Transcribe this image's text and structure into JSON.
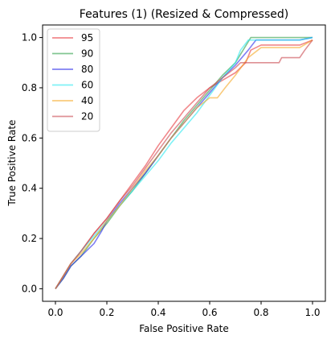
{
  "chart_data": {
    "type": "line",
    "title": "Features (1) (Resized & Compressed)",
    "xlabel": "False Positive Rate",
    "ylabel": "True Positive Rate",
    "xlim": [
      -0.05,
      1.05
    ],
    "ylim": [
      -0.05,
      1.05
    ],
    "xticks": [
      "0.0",
      "0.2",
      "0.4",
      "0.6",
      "0.8",
      "1.0"
    ],
    "yticks": [
      "0.0",
      "0.2",
      "0.4",
      "0.6",
      "0.8",
      "1.0"
    ],
    "grid": false,
    "legend_position": "top-left",
    "series": [
      {
        "name": "95",
        "color": "#e8383d",
        "x": [
          0.0,
          0.03,
          0.06,
          0.1,
          0.15,
          0.2,
          0.25,
          0.3,
          0.35,
          0.4,
          0.45,
          0.5,
          0.55,
          0.6,
          0.65,
          0.7,
          0.74,
          0.76,
          0.8,
          0.9,
          0.95,
          1.0
        ],
        "y": [
          0.0,
          0.05,
          0.1,
          0.15,
          0.22,
          0.28,
          0.35,
          0.42,
          0.49,
          0.57,
          0.64,
          0.71,
          0.76,
          0.8,
          0.83,
          0.86,
          0.9,
          0.95,
          0.97,
          0.97,
          0.97,
          0.99
        ]
      },
      {
        "name": "90",
        "color": "#2e9e48",
        "x": [
          0.0,
          0.03,
          0.06,
          0.1,
          0.15,
          0.2,
          0.25,
          0.3,
          0.35,
          0.4,
          0.45,
          0.5,
          0.55,
          0.6,
          0.65,
          0.7,
          0.73,
          0.76,
          0.8,
          0.9,
          0.95,
          1.0
        ],
        "y": [
          0.0,
          0.04,
          0.09,
          0.13,
          0.2,
          0.26,
          0.33,
          0.39,
          0.46,
          0.53,
          0.6,
          0.67,
          0.73,
          0.79,
          0.85,
          0.9,
          0.95,
          1.0,
          1.0,
          1.0,
          1.0,
          1.0
        ]
      },
      {
        "name": "80",
        "color": "#2a2aeb",
        "x": [
          0.0,
          0.03,
          0.06,
          0.1,
          0.13,
          0.15,
          0.18,
          0.2,
          0.25,
          0.3,
          0.35,
          0.4,
          0.45,
          0.5,
          0.55,
          0.6,
          0.65,
          0.7,
          0.75,
          0.78,
          0.9,
          0.95,
          1.0
        ],
        "y": [
          0.0,
          0.04,
          0.09,
          0.13,
          0.16,
          0.18,
          0.23,
          0.27,
          0.34,
          0.4,
          0.46,
          0.53,
          0.6,
          0.66,
          0.72,
          0.78,
          0.84,
          0.89,
          0.95,
          0.99,
          0.99,
          0.99,
          1.0
        ]
      },
      {
        "name": "60",
        "color": "#29eaf0",
        "x": [
          0.0,
          0.03,
          0.06,
          0.1,
          0.15,
          0.2,
          0.25,
          0.3,
          0.35,
          0.4,
          0.45,
          0.5,
          0.55,
          0.6,
          0.65,
          0.7,
          0.72,
          0.75,
          0.8,
          0.9,
          0.95,
          1.0
        ],
        "y": [
          0.0,
          0.05,
          0.1,
          0.15,
          0.21,
          0.27,
          0.33,
          0.39,
          0.45,
          0.51,
          0.58,
          0.64,
          0.7,
          0.77,
          0.84,
          0.9,
          0.95,
          0.99,
          0.99,
          0.99,
          0.99,
          1.0
        ]
      },
      {
        "name": "40",
        "color": "#f5a623",
        "x": [
          0.0,
          0.03,
          0.06,
          0.1,
          0.15,
          0.2,
          0.25,
          0.3,
          0.35,
          0.4,
          0.45,
          0.5,
          0.55,
          0.6,
          0.63,
          0.66,
          0.7,
          0.75,
          0.8,
          0.9,
          0.95,
          1.0
        ],
        "y": [
          0.0,
          0.05,
          0.1,
          0.14,
          0.2,
          0.27,
          0.33,
          0.4,
          0.47,
          0.53,
          0.6,
          0.66,
          0.72,
          0.76,
          0.76,
          0.8,
          0.85,
          0.92,
          0.96,
          0.96,
          0.96,
          0.99
        ]
      },
      {
        "name": "20",
        "color": "#c9484e",
        "x": [
          0.0,
          0.03,
          0.06,
          0.1,
          0.15,
          0.2,
          0.25,
          0.3,
          0.35,
          0.4,
          0.45,
          0.5,
          0.55,
          0.6,
          0.65,
          0.7,
          0.72,
          0.8,
          0.87,
          0.88,
          0.95,
          0.97,
          1.0
        ],
        "y": [
          0.0,
          0.05,
          0.1,
          0.15,
          0.22,
          0.28,
          0.35,
          0.41,
          0.48,
          0.55,
          0.62,
          0.68,
          0.74,
          0.8,
          0.84,
          0.88,
          0.9,
          0.9,
          0.9,
          0.92,
          0.92,
          0.95,
          0.99
        ]
      }
    ]
  }
}
